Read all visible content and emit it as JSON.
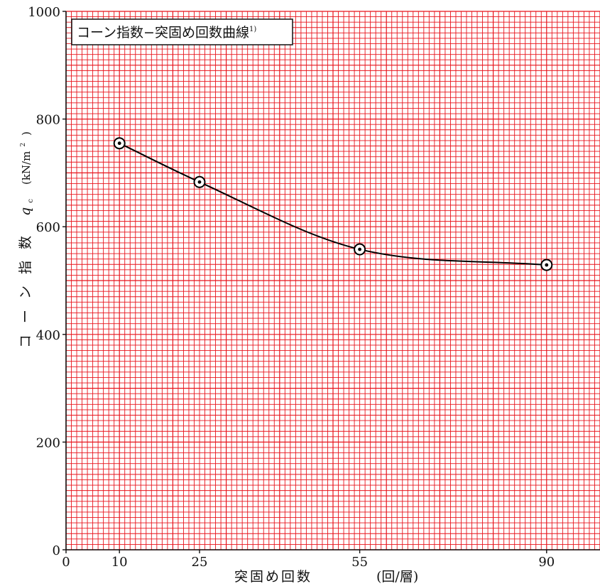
{
  "chart_data": {
    "type": "line",
    "title": "コーン指数−突固め回数曲線",
    "title_note": "1)",
    "xlabel": "突固め回数",
    "xunit": "(回/層)",
    "ylabel": "コーン指数",
    "ylabel_symbol": "q",
    "ylabel_subscript": "c",
    "yunit": "(kN/m",
    "yunit_power": "2",
    "yunit_close": ")",
    "x_ticks": [
      "0",
      "10",
      "25",
      "55",
      "90"
    ],
    "y_ticks": [
      "0",
      "200",
      "400",
      "600",
      "800",
      "1000"
    ],
    "xlim": [
      0,
      100
    ],
    "ylim": [
      0,
      1000
    ],
    "grid": true,
    "colors": {
      "grid": "#e8141c",
      "line": "#000000",
      "marker_fill": "#ffffff"
    },
    "series": [
      {
        "x": [
          10,
          25,
          55,
          90
        ],
        "y": [
          755,
          683,
          558,
          529
        ]
      }
    ]
  }
}
